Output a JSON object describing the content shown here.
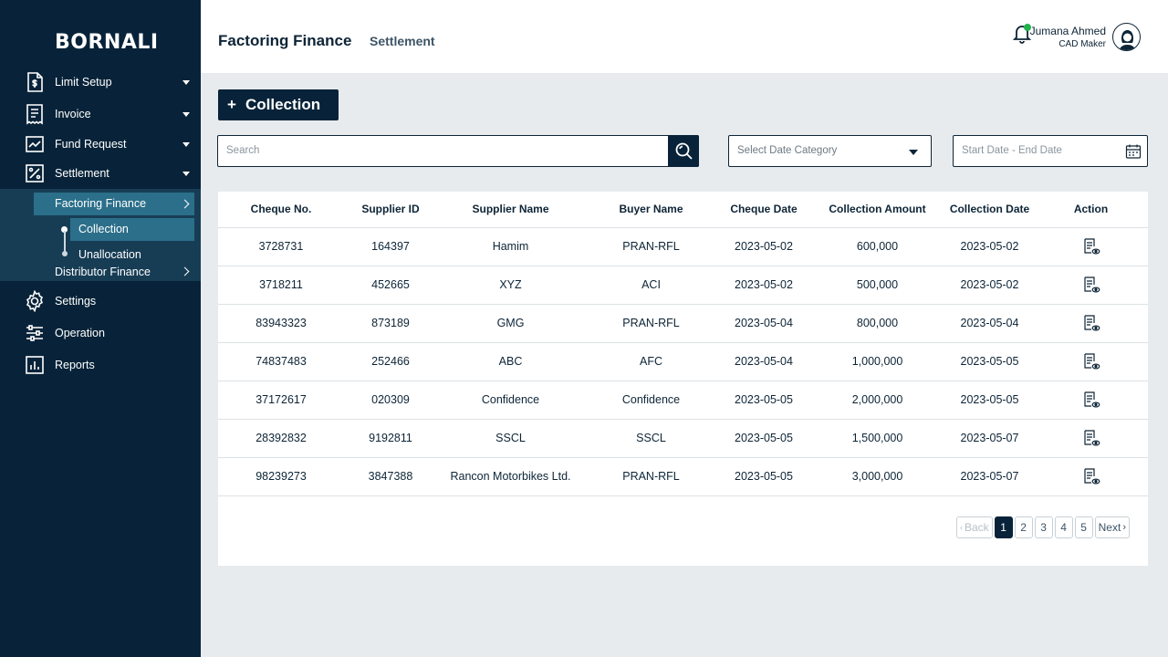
{
  "sidebar": {
    "brand": "BORNALI",
    "items": [
      {
        "label": "Limit Setup",
        "icon": "document-money-icon"
      },
      {
        "label": "Invoice",
        "icon": "receipt-icon"
      },
      {
        "label": "Fund Request",
        "icon": "trend-chart-icon"
      },
      {
        "label": "Settlement",
        "icon": "percent-square-icon"
      },
      {
        "label": "Settings",
        "icon": "gear-icon"
      },
      {
        "label": "Operation",
        "icon": "sliders-icon"
      },
      {
        "label": "Reports",
        "icon": "bar-report-icon"
      }
    ],
    "settlement_sub": {
      "factoring": "Factoring Finance",
      "collection": "Collection",
      "unallocation": "Unallocation",
      "distributor": "Distributor Finance"
    }
  },
  "header": {
    "title": "Factoring Finance",
    "subtitle": "Settlement",
    "user_name": "Jumana Ahmed",
    "user_role": "CAD Maker"
  },
  "toolbar": {
    "collection_button": "Collection",
    "search_placeholder": "Search",
    "date_category_placeholder": "Select Date Category",
    "date_range_placeholder": "Start Date - End Date"
  },
  "table": {
    "headers": [
      "Cheque No.",
      "Supplier ID",
      "Supplier Name",
      "Buyer Name",
      "Cheque Date",
      "Collection Amount",
      "Collection Date",
      "Action"
    ],
    "rows": [
      [
        "3728731",
        "164397",
        "Hamim",
        "PRAN-RFL",
        "2023-05-02",
        "600,000",
        "2023-05-02"
      ],
      [
        "3718211",
        "452665",
        "XYZ",
        "ACI",
        "2023-05-02",
        "500,000",
        "2023-05-02"
      ],
      [
        "83943323",
        "873189",
        "GMG",
        "PRAN-RFL",
        "2023-05-04",
        "800,000",
        "2023-05-04"
      ],
      [
        "74837483",
        "252466",
        "ABC",
        "AFC",
        "2023-05-04",
        "1,000,000",
        "2023-05-05"
      ],
      [
        "37172617",
        "020309",
        "Confidence",
        "Confidence",
        "2023-05-05",
        "2,000,000",
        "2023-05-05"
      ],
      [
        "28392832",
        "9192811",
        "SSCL",
        "SSCL",
        "2023-05-05",
        "1,500,000",
        "2023-05-07"
      ],
      [
        "98239273",
        "3847388",
        "Rancon Motorbikes Ltd.",
        "PRAN-RFL",
        "2023-05-05",
        "3,000,000",
        "2023-05-07"
      ]
    ]
  },
  "pagination": {
    "back": "Back",
    "pages": [
      "1",
      "2",
      "3",
      "4",
      "5"
    ],
    "next": "Next",
    "current": "1"
  },
  "colors": {
    "sidebar_bg": "#082339",
    "active_item": "#2b6f8a",
    "notification_dot": "#22b14c"
  }
}
